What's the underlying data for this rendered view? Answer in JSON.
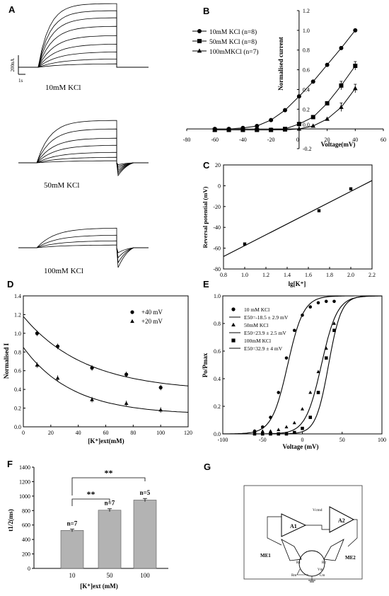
{
  "panel_labels": {
    "A": "A",
    "B": "B",
    "C": "C",
    "D": "D",
    "E": "E",
    "F": "F",
    "G": "G"
  },
  "panel_a": {
    "scale_current": "200nA",
    "scale_time": "1s",
    "trace_labels": [
      "10mM KCl",
      "50mM KCl",
      "100mM KCl"
    ]
  },
  "chart_data": [
    {
      "id": "B",
      "type": "line",
      "xlabel": "Voltage(mV)",
      "ylabel": "Normalised current",
      "xlim": [
        -80,
        60
      ],
      "ylim": [
        -0.2,
        1.2
      ],
      "xticks": [
        -80,
        -60,
        -40,
        -20,
        0,
        20,
        40,
        60
      ],
      "yticks": [
        -0.2,
        0.0,
        0.2,
        0.4,
        0.6,
        0.8,
        1.0,
        1.2
      ],
      "ytick_labels": [
        "-0.2",
        "0.0",
        "0.2",
        "0.4",
        "0.6",
        "0.8",
        "1.0",
        "1.2"
      ],
      "legend": "top-left",
      "x": [
        -60,
        -50,
        -40,
        -30,
        -20,
        -10,
        0,
        10,
        20,
        30,
        40
      ],
      "series": [
        {
          "name": "10mM KCl (n=8)",
          "marker": "circle",
          "values": [
            0.0,
            0.0,
            0.01,
            0.03,
            0.09,
            0.19,
            0.33,
            0.48,
            0.65,
            0.82,
            1.0
          ]
        },
        {
          "name": "50mM KCl (n=8)",
          "marker": "square",
          "values": [
            -0.01,
            -0.01,
            -0.01,
            -0.01,
            -0.01,
            0.0,
            0.05,
            0.12,
            0.26,
            0.44,
            0.64
          ]
        },
        {
          "name": "100mMKCl (n=7)",
          "marker": "triangle",
          "values": [
            -0.01,
            -0.01,
            -0.01,
            -0.01,
            -0.01,
            -0.01,
            0.0,
            0.03,
            0.1,
            0.22,
            0.41
          ]
        }
      ]
    },
    {
      "id": "C",
      "type": "scatter",
      "xlabel": "lg[K⁺]",
      "ylabel": "Reversal potential (mV)",
      "xlim": [
        0.8,
        2.2
      ],
      "ylim": [
        -80,
        20
      ],
      "xticks": [
        0.8,
        1.0,
        1.2,
        1.4,
        1.6,
        1.8,
        2.0,
        2.2
      ],
      "yticks": [
        -80,
        -60,
        -40,
        -20,
        0,
        20
      ],
      "x": [
        1.0,
        1.7,
        2.0
      ],
      "y": [
        -56,
        -24,
        -3
      ],
      "fit_line": {
        "x": [
          0.8,
          2.2
        ],
        "y": [
          -68,
          5
        ]
      }
    },
    {
      "id": "D",
      "type": "scatter",
      "xlabel": "[K⁺]ext(mM)",
      "ylabel": "Normalised I",
      "xlim": [
        0,
        120
      ],
      "ylim": [
        0,
        1.4
      ],
      "xticks": [
        0,
        20,
        40,
        60,
        80,
        100,
        120
      ],
      "yticks": [
        0.0,
        0.2,
        0.4,
        0.6,
        0.8,
        1.0,
        1.2,
        1.4
      ],
      "ytick_labels": [
        "0.0",
        "0.2",
        "0.4",
        "0.6",
        "0.8",
        "1.0",
        "1.2",
        "1.4"
      ],
      "legend": "top-right",
      "x": [
        10,
        25,
        50,
        75,
        100
      ],
      "series": [
        {
          "name": "+40 mV",
          "marker": "circle",
          "values": [
            1.0,
            0.86,
            0.63,
            0.56,
            0.42
          ]
        },
        {
          "name": "+20 mV",
          "marker": "triangle",
          "values": [
            0.66,
            0.52,
            0.29,
            0.25,
            0.18
          ]
        }
      ]
    },
    {
      "id": "E",
      "type": "scatter",
      "xlabel": "Voltage (mV)",
      "ylabel": "Po/Pmax",
      "xlim": [
        -100,
        100
      ],
      "ylim": [
        0,
        1
      ],
      "xticks": [
        -100,
        -50,
        0,
        50,
        100
      ],
      "yticks": [
        0.0,
        0.2,
        0.4,
        0.6,
        0.8,
        1.0
      ],
      "ytick_labels": [
        "0.0",
        "0.2",
        "0.4",
        "0.6",
        "0.8",
        "1.0"
      ],
      "legend": "top-left",
      "x": [
        -60,
        -50,
        -40,
        -30,
        -20,
        -10,
        0,
        10,
        20,
        30,
        40
      ],
      "series": [
        {
          "name": "10 mM KCl",
          "fit_label": "E50=-18.5 ± 2.9 mV",
          "marker": "circle",
          "v50": -18.5,
          "k": 10,
          "values": [
            0.02,
            0.05,
            0.12,
            0.3,
            0.55,
            0.75,
            0.86,
            0.92,
            0.95,
            0.96,
            0.96
          ]
        },
        {
          "name": "50mM KCl",
          "fit_label": "E50=23.9 ± 2.5 mV",
          "marker": "triangle",
          "v50": 23.9,
          "k": 10,
          "values": [
            0.02,
            0.02,
            0.02,
            0.03,
            0.05,
            0.08,
            0.18,
            0.3,
            0.45,
            0.62,
            0.8
          ]
        },
        {
          "name": "100mM KCl",
          "fit_label": "E50=32.9 ± 4 mV",
          "marker": "square",
          "v50": 32.9,
          "k": 8,
          "values": [
            0.0,
            0.0,
            0.0,
            0.0,
            0.0,
            0.01,
            0.04,
            0.12,
            0.3,
            0.55,
            0.75
          ]
        }
      ]
    },
    {
      "id": "F",
      "type": "bar",
      "xlabel": "[K⁺]ext (mM)",
      "ylabel": "t1/2(ms)",
      "categories": [
        "10",
        "50",
        "100"
      ],
      "values": [
        525,
        805,
        945
      ],
      "errors": [
        18,
        20,
        22
      ],
      "ylim": [
        0,
        1400
      ],
      "yticks": [
        0,
        200,
        400,
        600,
        800,
        1000,
        1200,
        1400
      ],
      "bar_labels": [
        "n=7",
        "n=7",
        "n=5"
      ],
      "significance": [
        "**",
        "**"
      ]
    }
  ],
  "panel_g": {
    "labels": [
      "A1",
      "A2",
      "ME1",
      "ME2",
      "Vcmd",
      "R1",
      "R2",
      "Rm",
      "Cm",
      "Vm"
    ]
  }
}
